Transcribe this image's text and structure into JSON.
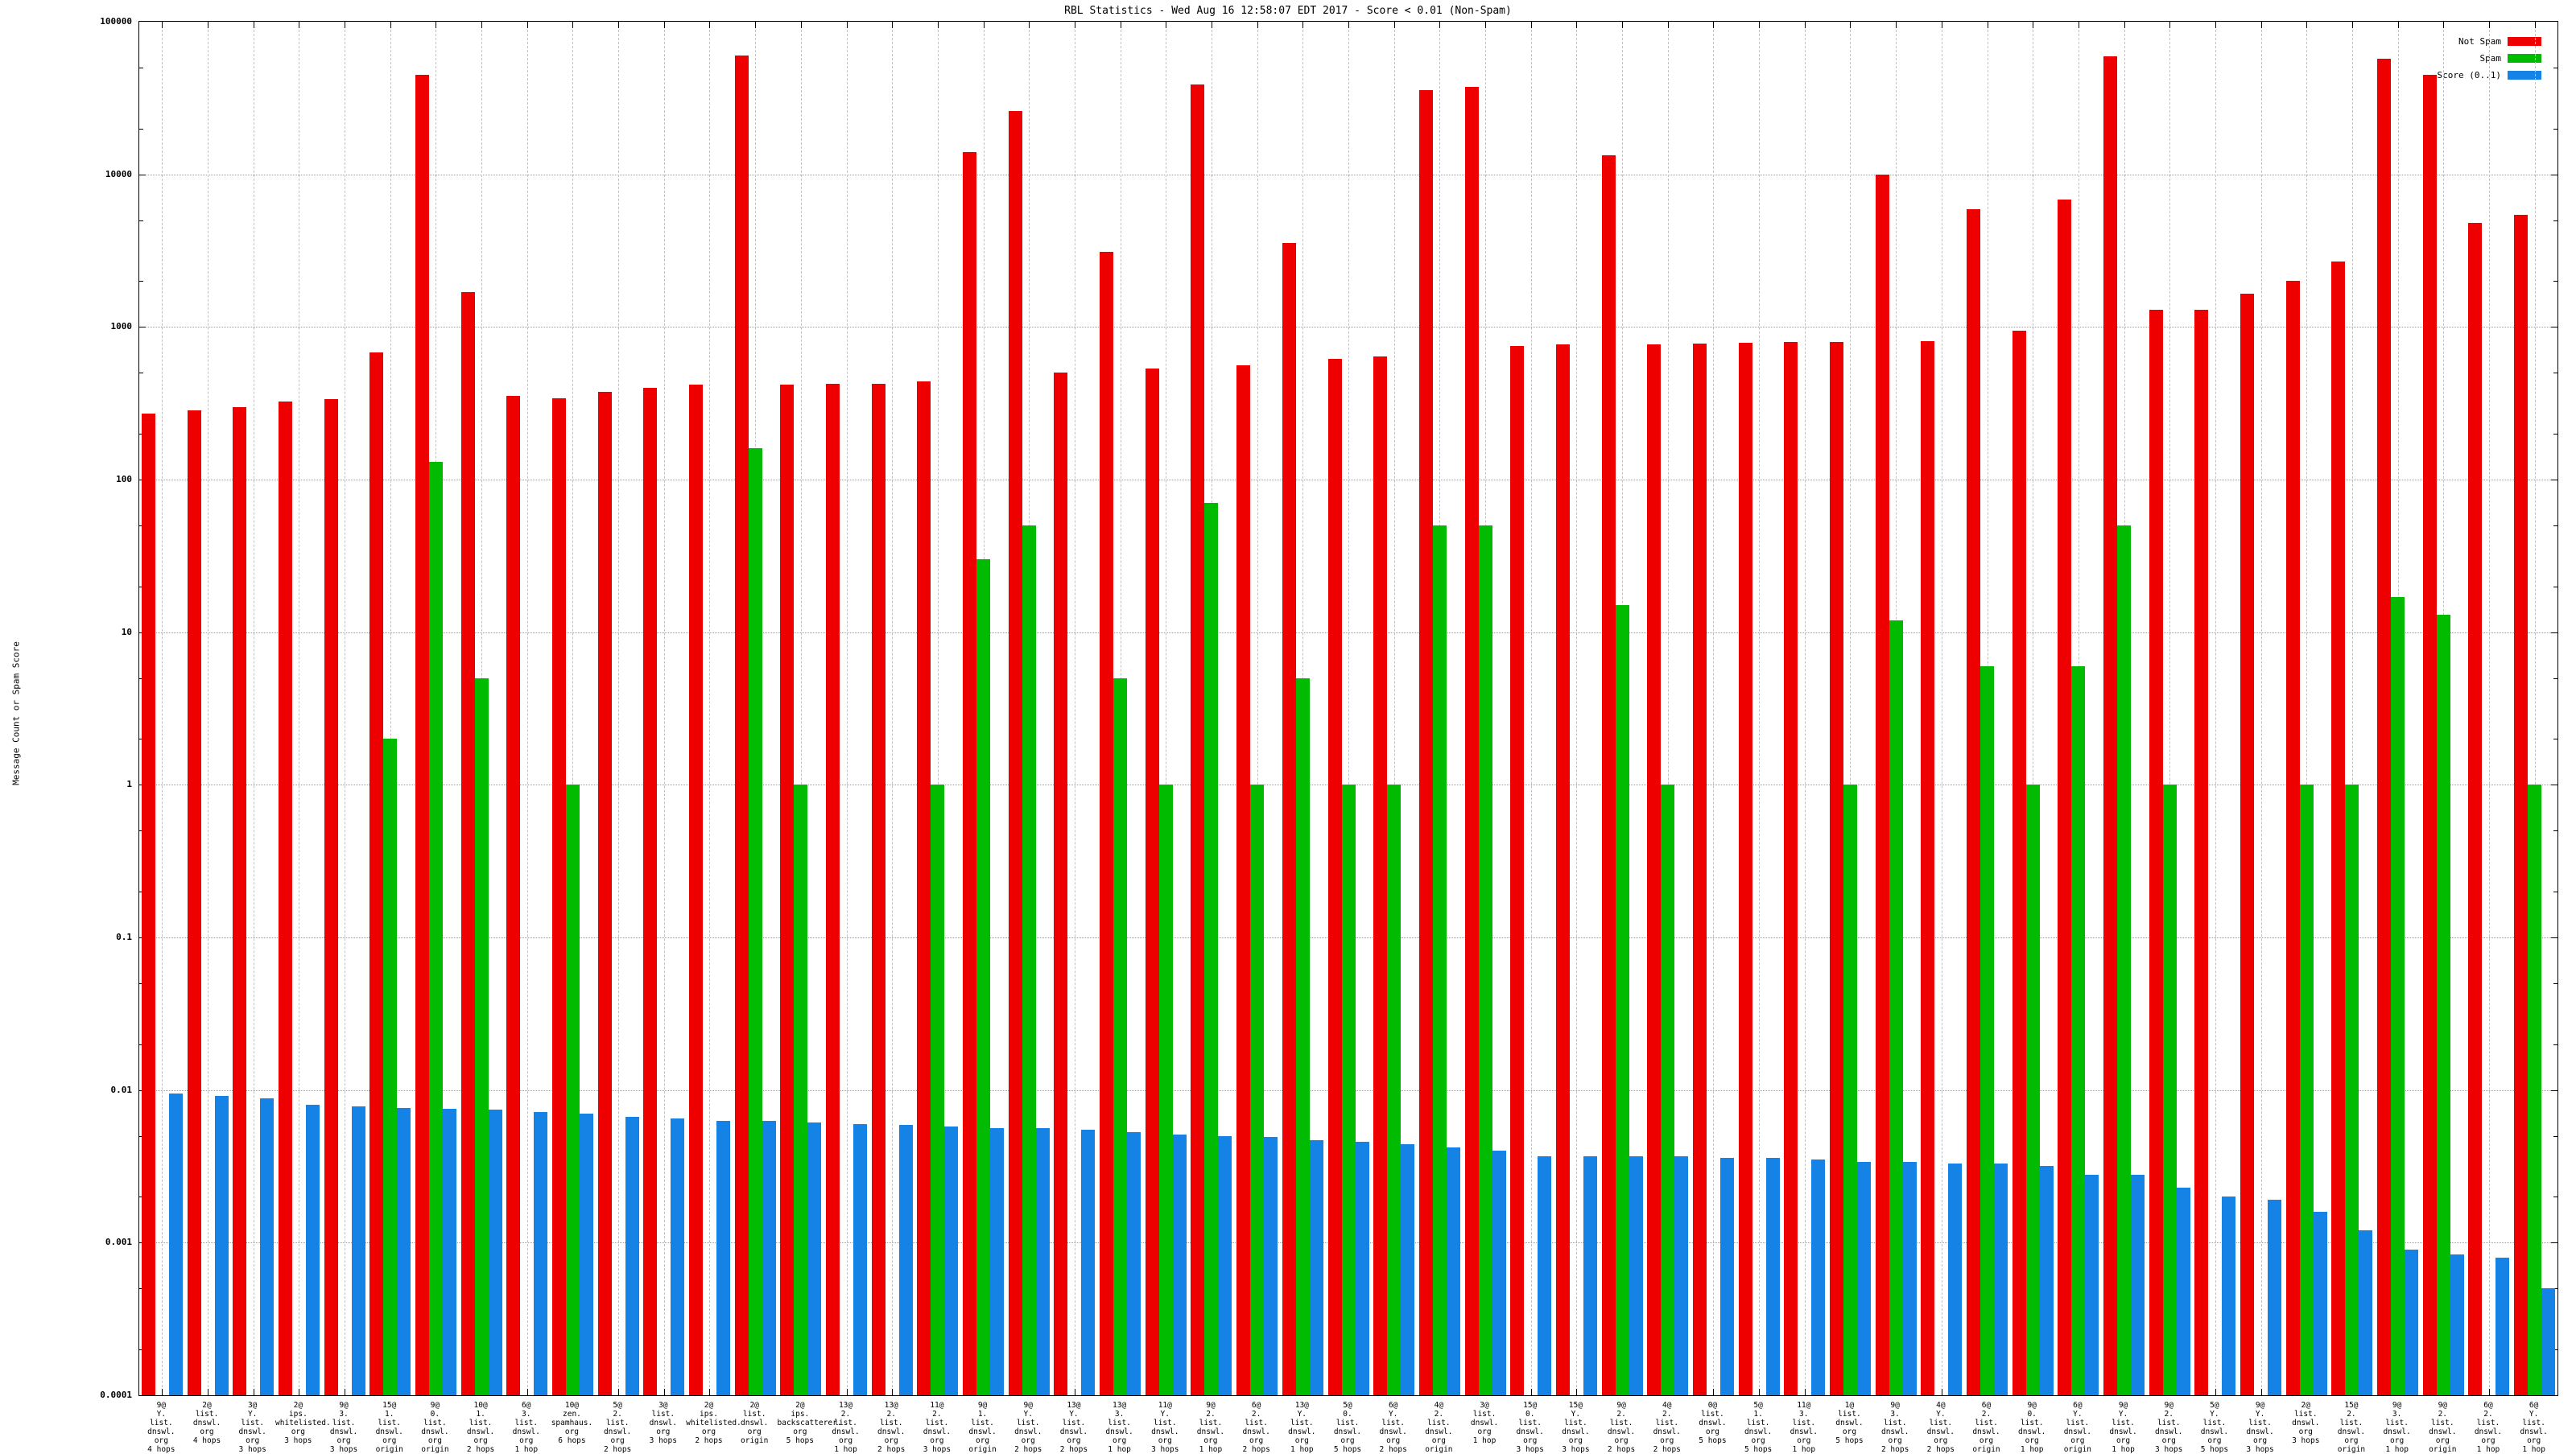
{
  "title": "RBL Statistics - Wed Aug 16 12:58:07 EDT 2017 - Score < 0.01 (Non-Spam)",
  "y_axis": {
    "label": "Message Count or Spam Score",
    "ticks": [
      "100000",
      "10000",
      "1000",
      "100",
      "10",
      "1",
      "0.1",
      "0.01",
      "0.001",
      "0.0001"
    ]
  },
  "legend": [
    {
      "label": "Not Spam",
      "color": "#ee0000"
    },
    {
      "label": "Spam",
      "color": "#00bb00"
    },
    {
      "label": "Score (0..1)",
      "color": "#1583e6"
    }
  ],
  "colors": {
    "not_spam": "#ee0000",
    "spam": "#00bb00",
    "score": "#1583e6",
    "grid_h": "#9a9a9a",
    "grid_v": "#c0c0c0",
    "axis": "#000000"
  },
  "chart_data": {
    "type": "bar",
    "log_scale": true,
    "ylim": [
      0.0001,
      100000
    ],
    "ylabel": "Message Count or Spam Score",
    "grid": true,
    "legend_position": "top-right",
    "series_names": [
      "Not Spam",
      "Spam",
      "Score (0..1)"
    ],
    "groups": [
      {
        "label": [
          "9@",
          "Y.",
          "list.",
          "dnswl.",
          "org",
          "4 hops"
        ],
        "not_spam": 270,
        "spam": null,
        "score": 0.0095
      },
      {
        "label": [
          "2@",
          "list.",
          "dnswl.",
          "org",
          "4 hops"
        ],
        "not_spam": 285,
        "spam": null,
        "score": 0.0092
      },
      {
        "label": [
          "3@",
          "Y.",
          "list.",
          "dnswl.",
          "org",
          "3 hops"
        ],
        "not_spam": 300,
        "spam": null,
        "score": 0.0088
      },
      {
        "label": [
          "2@",
          "ips.",
          "whitelisted.",
          "org",
          "3 hops"
        ],
        "not_spam": 325,
        "spam": null,
        "score": 0.008
      },
      {
        "label": [
          "9@",
          "3.",
          "list.",
          "dnswl.",
          "org",
          "3 hops"
        ],
        "not_spam": 335,
        "spam": null,
        "score": 0.0078
      },
      {
        "label": [
          "15@",
          "1.",
          "list.",
          "dnswl.",
          "org",
          "origin"
        ],
        "not_spam": 685,
        "spam": 2,
        "score": 0.0076
      },
      {
        "label": [
          "9@",
          "0.",
          "list.",
          "dnswl.",
          "org",
          "origin"
        ],
        "not_spam": 45000,
        "spam": 130,
        "score": 0.0075
      },
      {
        "label": [
          "10@",
          "1.",
          "list.",
          "dnswl.",
          "org",
          "2 hops"
        ],
        "not_spam": 1700,
        "spam": 5,
        "score": 0.0074
      },
      {
        "label": [
          "6@",
          "3.",
          "list.",
          "dnswl.",
          "org",
          "1 hop"
        ],
        "not_spam": 355,
        "spam": null,
        "score": 0.0072
      },
      {
        "label": [
          "10@",
          "zen.",
          "spamhaus.",
          "org",
          "6 hops"
        ],
        "not_spam": 340,
        "spam": 1,
        "score": 0.007
      },
      {
        "label": [
          "5@",
          "2.",
          "list.",
          "dnswl.",
          "org",
          "2 hops"
        ],
        "not_spam": 375,
        "spam": null,
        "score": 0.0067
      },
      {
        "label": [
          "3@",
          "list.",
          "dnswl.",
          "org",
          "3 hops"
        ],
        "not_spam": 400,
        "spam": null,
        "score": 0.0065
      },
      {
        "label": [
          "2@",
          "ips.",
          "whitelisted.",
          "org",
          "2 hops"
        ],
        "not_spam": 420,
        "spam": null,
        "score": 0.0063
      },
      {
        "label": [
          "2@",
          "list.",
          "dnswl.",
          "org",
          "origin"
        ],
        "not_spam": 60000,
        "spam": 160,
        "score": 0.0063
      },
      {
        "label": [
          "2@",
          "ips.",
          "backscatterer.",
          "org",
          "5 hops"
        ],
        "not_spam": 420,
        "spam": 1,
        "score": 0.0061
      },
      {
        "label": [
          "13@",
          "2.",
          "list.",
          "dnswl.",
          "org",
          "1 hop"
        ],
        "not_spam": 425,
        "spam": null,
        "score": 0.006
      },
      {
        "label": [
          "13@",
          "2.",
          "list.",
          "dnswl.",
          "org",
          "2 hops"
        ],
        "not_spam": 425,
        "spam": null,
        "score": 0.0059
      },
      {
        "label": [
          "11@",
          "2.",
          "list.",
          "dnswl.",
          "org",
          "3 hops"
        ],
        "not_spam": 440,
        "spam": 1,
        "score": 0.0058
      },
      {
        "label": [
          "9@",
          "1.",
          "list.",
          "dnswl.",
          "org",
          "origin"
        ],
        "not_spam": 14000,
        "spam": 30,
        "score": 0.0056
      },
      {
        "label": [
          "9@",
          "Y.",
          "list.",
          "dnswl.",
          "org",
          "2 hops"
        ],
        "not_spam": 26000,
        "spam": 50,
        "score": 0.0056
      },
      {
        "label": [
          "13@",
          "Y.",
          "list.",
          "dnswl.",
          "org",
          "2 hops"
        ],
        "not_spam": 505,
        "spam": null,
        "score": 0.0055
      },
      {
        "label": [
          "13@",
          "3.",
          "list.",
          "dnswl.",
          "org",
          "1 hop"
        ],
        "not_spam": 3100,
        "spam": 5,
        "score": 0.0053
      },
      {
        "label": [
          "11@",
          "Y.",
          "list.",
          "dnswl.",
          "org",
          "3 hops"
        ],
        "not_spam": 535,
        "spam": 1,
        "score": 0.0051
      },
      {
        "label": [
          "9@",
          "2.",
          "list.",
          "dnswl.",
          "org",
          "1 hop"
        ],
        "not_spam": 38800,
        "spam": 70,
        "score": 0.005
      },
      {
        "label": [
          "6@",
          "2.",
          "list.",
          "dnswl.",
          "org",
          "2 hops"
        ],
        "not_spam": 560,
        "spam": 1,
        "score": 0.0049
      },
      {
        "label": [
          "13@",
          "Y.",
          "list.",
          "dnswl.",
          "org",
          "1 hop"
        ],
        "not_spam": 3550,
        "spam": 5,
        "score": 0.0047
      },
      {
        "label": [
          "5@",
          "0.",
          "list.",
          "dnswl.",
          "org",
          "5 hops"
        ],
        "not_spam": 615,
        "spam": 1,
        "score": 0.0046
      },
      {
        "label": [
          "6@",
          "Y.",
          "list.",
          "dnswl.",
          "org",
          "2 hops"
        ],
        "not_spam": 640,
        "spam": 1,
        "score": 0.0044
      },
      {
        "label": [
          "4@",
          "2.",
          "list.",
          "dnswl.",
          "org",
          "origin"
        ],
        "not_spam": 35500,
        "spam": 50,
        "score": 0.0042
      },
      {
        "label": [
          "3@",
          "list.",
          "dnswl.",
          "org",
          "1 hop"
        ],
        "not_spam": 37300,
        "spam": 50,
        "score": 0.004
      },
      {
        "label": [
          "15@",
          "0.",
          "list.",
          "dnswl.",
          "org",
          "3 hops"
        ],
        "not_spam": 750,
        "spam": null,
        "score": 0.0037
      },
      {
        "label": [
          "15@",
          "Y.",
          "list.",
          "dnswl.",
          "org",
          "3 hops"
        ],
        "not_spam": 770,
        "spam": null,
        "score": 0.0037
      },
      {
        "label": [
          "9@",
          "2.",
          "list.",
          "dnswl.",
          "org",
          "2 hops"
        ],
        "not_spam": 13400,
        "spam": 15,
        "score": 0.0037
      },
      {
        "label": [
          "4@",
          "2.",
          "list.",
          "dnswl.",
          "org",
          "2 hops"
        ],
        "not_spam": 770,
        "spam": 1,
        "score": 0.0037
      },
      {
        "label": [
          "0@",
          "list.",
          "dnswl.",
          "org",
          "5 hops"
        ],
        "not_spam": 780,
        "spam": null,
        "score": 0.0036
      },
      {
        "label": [
          "5@",
          "1.",
          "list.",
          "dnswl.",
          "org",
          "5 hops"
        ],
        "not_spam": 790,
        "spam": null,
        "score": 0.0036
      },
      {
        "label": [
          "11@",
          "3.",
          "list.",
          "dnswl.",
          "org",
          "1 hop"
        ],
        "not_spam": 800,
        "spam": null,
        "score": 0.0035
      },
      {
        "label": [
          "1@",
          "list.",
          "dnswl.",
          "org",
          "5 hops"
        ],
        "not_spam": 800,
        "spam": 1,
        "score": 0.0034
      },
      {
        "label": [
          "9@",
          "3.",
          "list.",
          "dnswl.",
          "org",
          "2 hops"
        ],
        "not_spam": 10000,
        "spam": 12,
        "score": 0.0034
      },
      {
        "label": [
          "4@",
          "Y.",
          "list.",
          "dnswl.",
          "org",
          "2 hops"
        ],
        "not_spam": 810,
        "spam": null,
        "score": 0.0033
      },
      {
        "label": [
          "6@",
          "2.",
          "list.",
          "dnswl.",
          "org",
          "origin"
        ],
        "not_spam": 5900,
        "spam": 6,
        "score": 0.0033
      },
      {
        "label": [
          "9@",
          "0.",
          "list.",
          "dnswl.",
          "org",
          "1 hop"
        ],
        "not_spam": 950,
        "spam": 1,
        "score": 0.0032
      },
      {
        "label": [
          "6@",
          "Y.",
          "list.",
          "dnswl.",
          "org",
          "origin"
        ],
        "not_spam": 6800,
        "spam": 6,
        "score": 0.0028
      },
      {
        "label": [
          "9@",
          "Y.",
          "list.",
          "dnswl.",
          "org",
          "1 hop"
        ],
        "not_spam": 59000,
        "spam": 50,
        "score": 0.0028
      },
      {
        "label": [
          "9@",
          "2.",
          "list.",
          "dnswl.",
          "org",
          "3 hops"
        ],
        "not_spam": 1300,
        "spam": 1,
        "score": 0.0023
      },
      {
        "label": [
          "5@",
          "Y.",
          "list.",
          "dnswl.",
          "org",
          "5 hops"
        ],
        "not_spam": 1300,
        "spam": null,
        "score": 0.002
      },
      {
        "label": [
          "9@",
          "Y.",
          "list.",
          "dnswl.",
          "org",
          "3 hops"
        ],
        "not_spam": 1650,
        "spam": null,
        "score": 0.0019
      },
      {
        "label": [
          "2@",
          "list.",
          "dnswl.",
          "org",
          "3 hops"
        ],
        "not_spam": 2000,
        "spam": 1,
        "score": 0.0016
      },
      {
        "label": [
          "15@",
          "2.",
          "list.",
          "dnswl.",
          "org",
          "origin"
        ],
        "not_spam": 2700,
        "spam": 1,
        "score": 0.0012
      },
      {
        "label": [
          "9@",
          "3.",
          "list.",
          "dnswl.",
          "org",
          "1 hop"
        ],
        "not_spam": 57000,
        "spam": 17,
        "score": 0.0009
      },
      {
        "label": [
          "9@",
          "2.",
          "list.",
          "dnswl.",
          "org",
          "origin"
        ],
        "not_spam": 45000,
        "spam": 13,
        "score": 0.00084
      },
      {
        "label": [
          "6@",
          "2.",
          "list.",
          "dnswl.",
          "org",
          "1 hop"
        ],
        "not_spam": 4800,
        "spam": null,
        "score": 0.0008
      },
      {
        "label": [
          "6@",
          "Y.",
          "list.",
          "dnswl.",
          "org",
          "1 hop"
        ],
        "not_spam": 5400,
        "spam": 1,
        "score": 0.0005
      }
    ]
  }
}
